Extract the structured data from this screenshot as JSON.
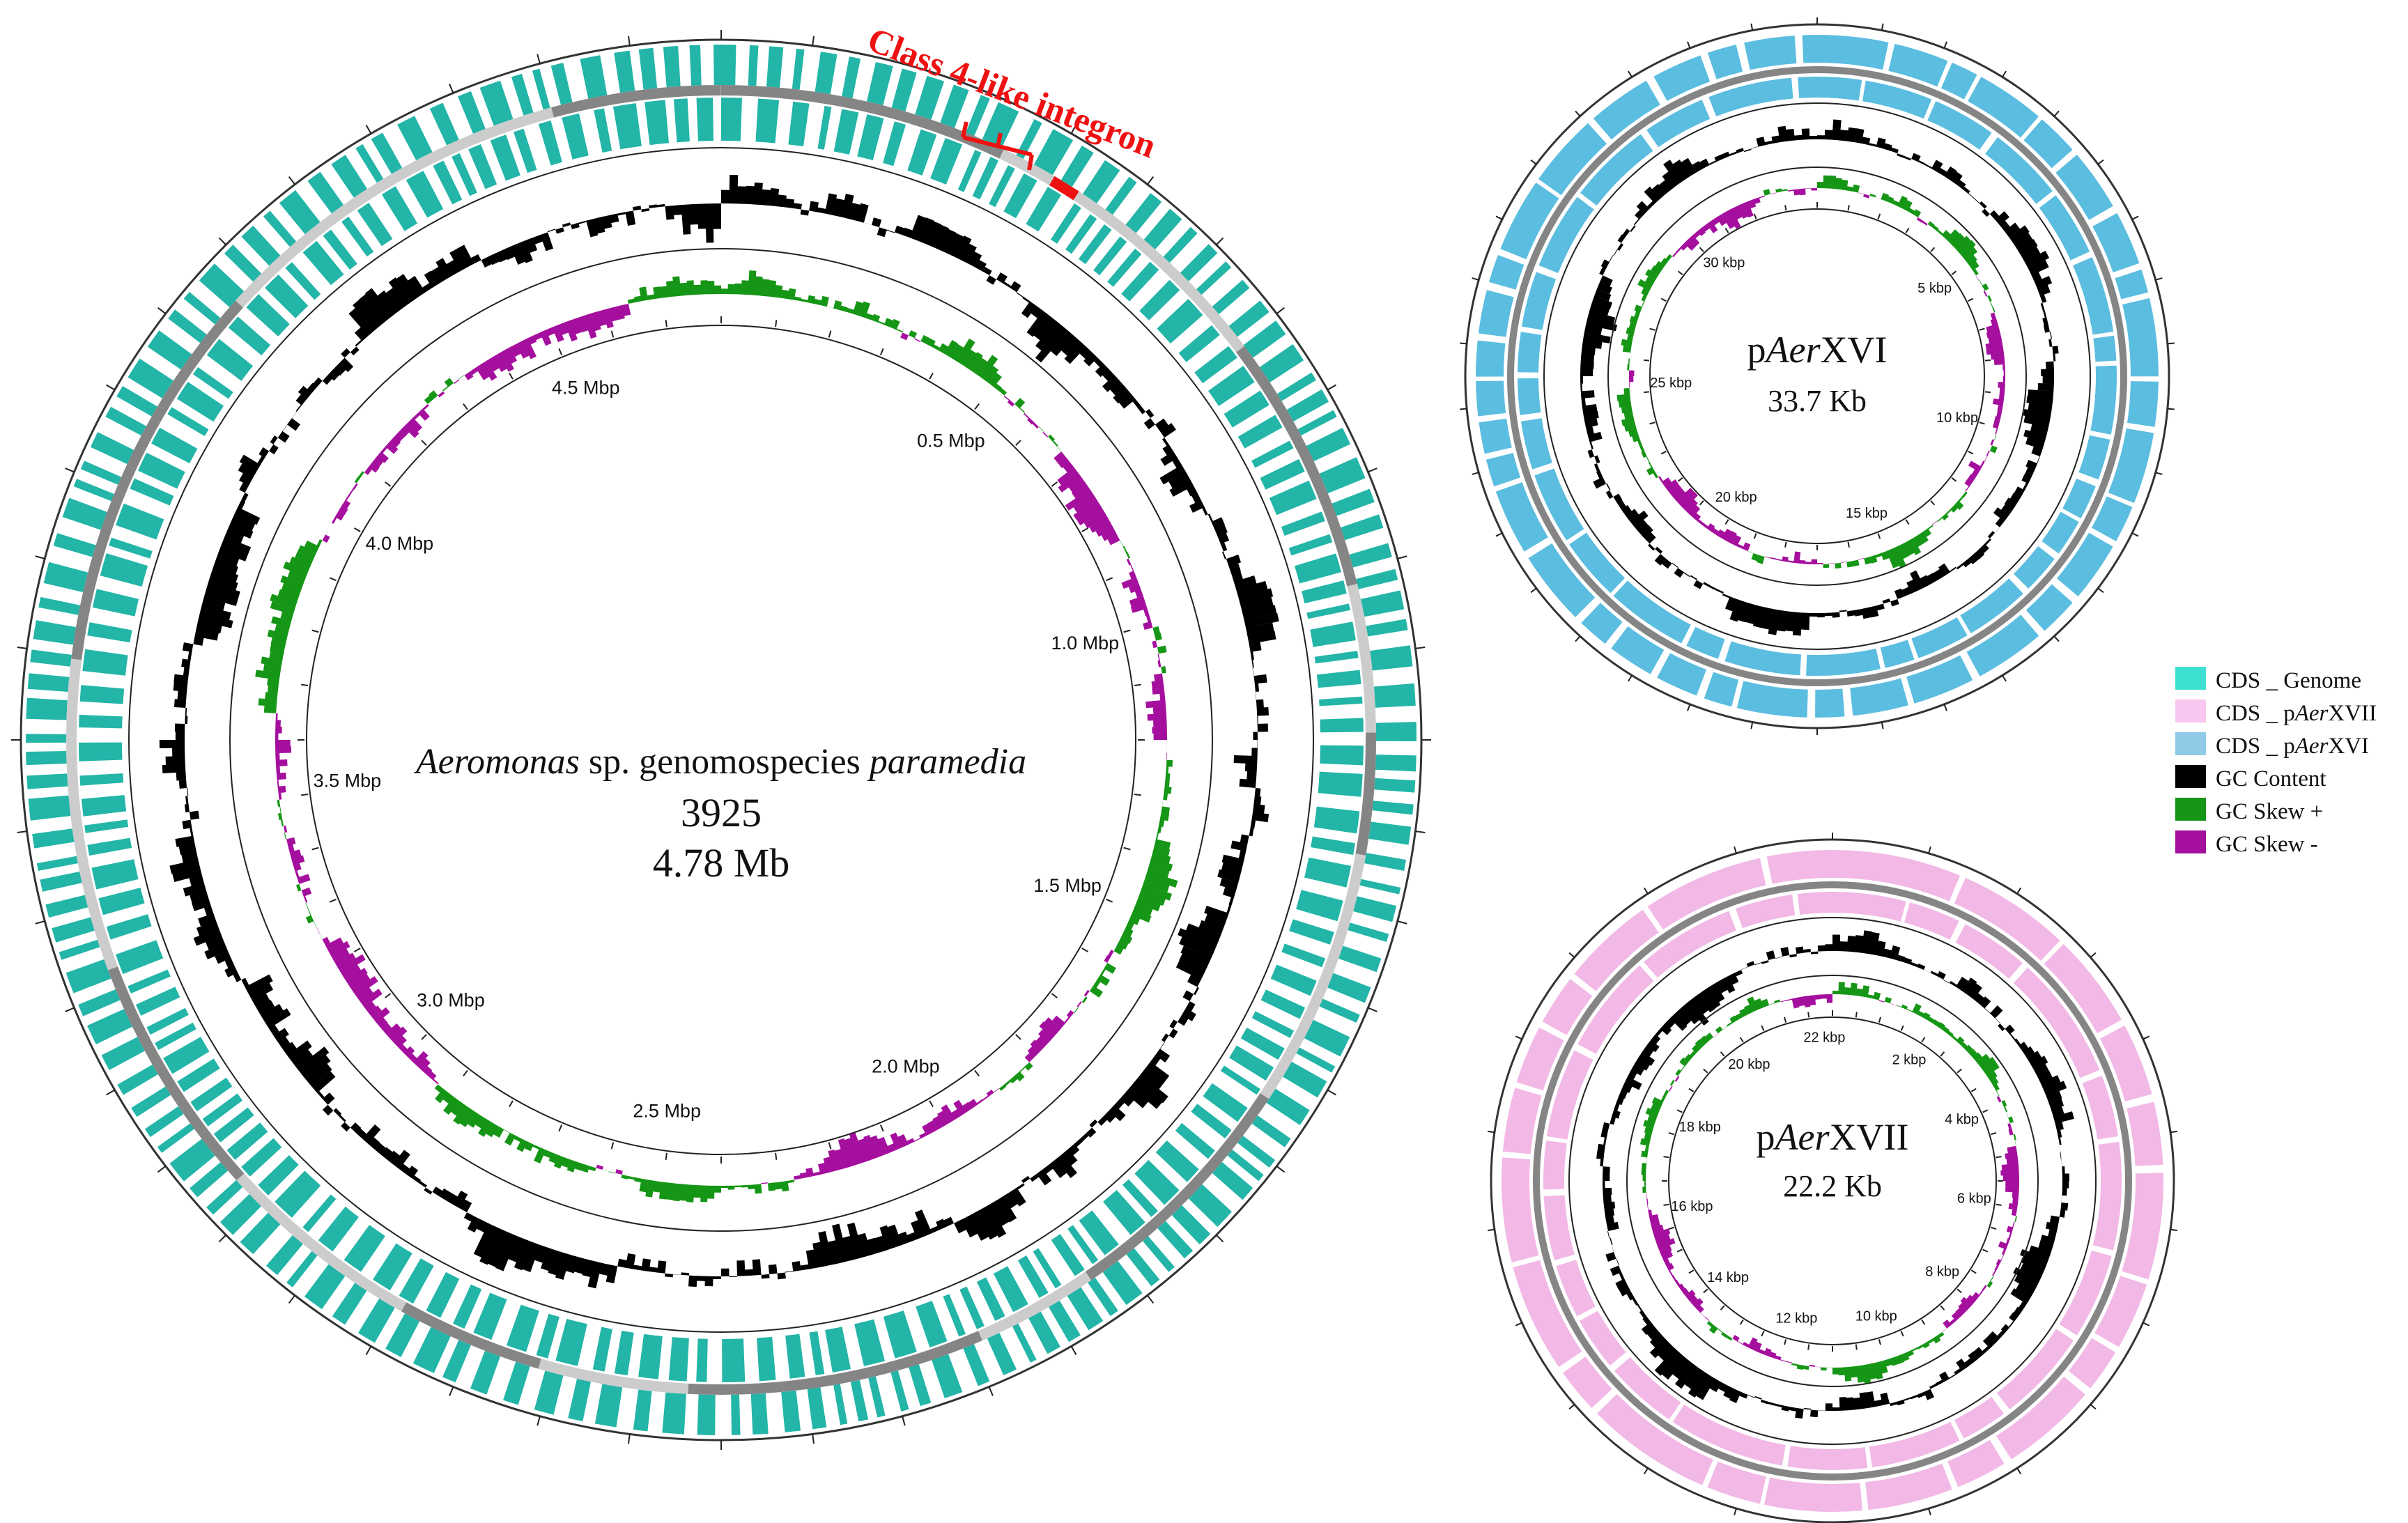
{
  "colors": {
    "cds_genome": "#22b5a8",
    "cds_paerxvii": "#f2b8e6",
    "cds_paerxvi": "#5bbde0",
    "gc_content": "#000000",
    "gc_skew_pos": "#169616",
    "gc_skew_neg": "#a50f9e",
    "backbone_dark": "#858585",
    "backbone_light": "#cccccc",
    "integron": "#ee1111"
  },
  "genome": {
    "name_italic": "Aeromonas",
    "name_mid": " sp. genomospecies ",
    "name_italic2": "paramedia",
    "strain": "3925",
    "size": "4.78 Mb",
    "ticks": [
      "0.5 Mbp",
      "1.0 Mbp",
      "1.5 Mbp",
      "2.0 Mbp",
      "2.5 Mbp",
      "3.0 Mbp",
      "3.5 Mbp",
      "4.0 Mbp",
      "4.5 Mbp"
    ],
    "annotation": "Class 4-like integron"
  },
  "plasmid_xvi": {
    "name_pre": "p",
    "name_italic": "Aer",
    "name_post": "XVI",
    "size": "33.7 Kb",
    "ticks": [
      "5 kbp",
      "10 kbp",
      "15 kbp",
      "20 kbp",
      "25 kbp",
      "30 kbp"
    ]
  },
  "plasmid_xvii": {
    "name_pre": "p",
    "name_italic": "Aer",
    "name_post": "XVII",
    "size": "22.2 Kb",
    "ticks": [
      "2 kbp",
      "4 kbp",
      "6 kbp",
      "8 kbp",
      "10 kbp",
      "12 kbp",
      "14 kbp",
      "16 kbp",
      "18 kbp",
      "20 kbp",
      "22 kbp"
    ]
  },
  "legend": [
    {
      "label_pre": "CDS _ Genome",
      "label_italic": "",
      "label_post": "",
      "color": "#3de0d0"
    },
    {
      "label_pre": "CDS _ p",
      "label_italic": "Aer",
      "label_post": "XVII",
      "color": "#f8c6ef"
    },
    {
      "label_pre": "CDS _ p",
      "label_italic": "Aer",
      "label_post": "XVI",
      "color": "#8fcbe6"
    },
    {
      "label_pre": "GC Content",
      "label_italic": "",
      "label_post": "",
      "color": "#000000"
    },
    {
      "label_pre": "GC Skew +",
      "label_italic": "",
      "label_post": "",
      "color": "#169616"
    },
    {
      "label_pre": "GC Skew -",
      "label_italic": "",
      "label_post": "",
      "color": "#a50f9e"
    }
  ]
}
